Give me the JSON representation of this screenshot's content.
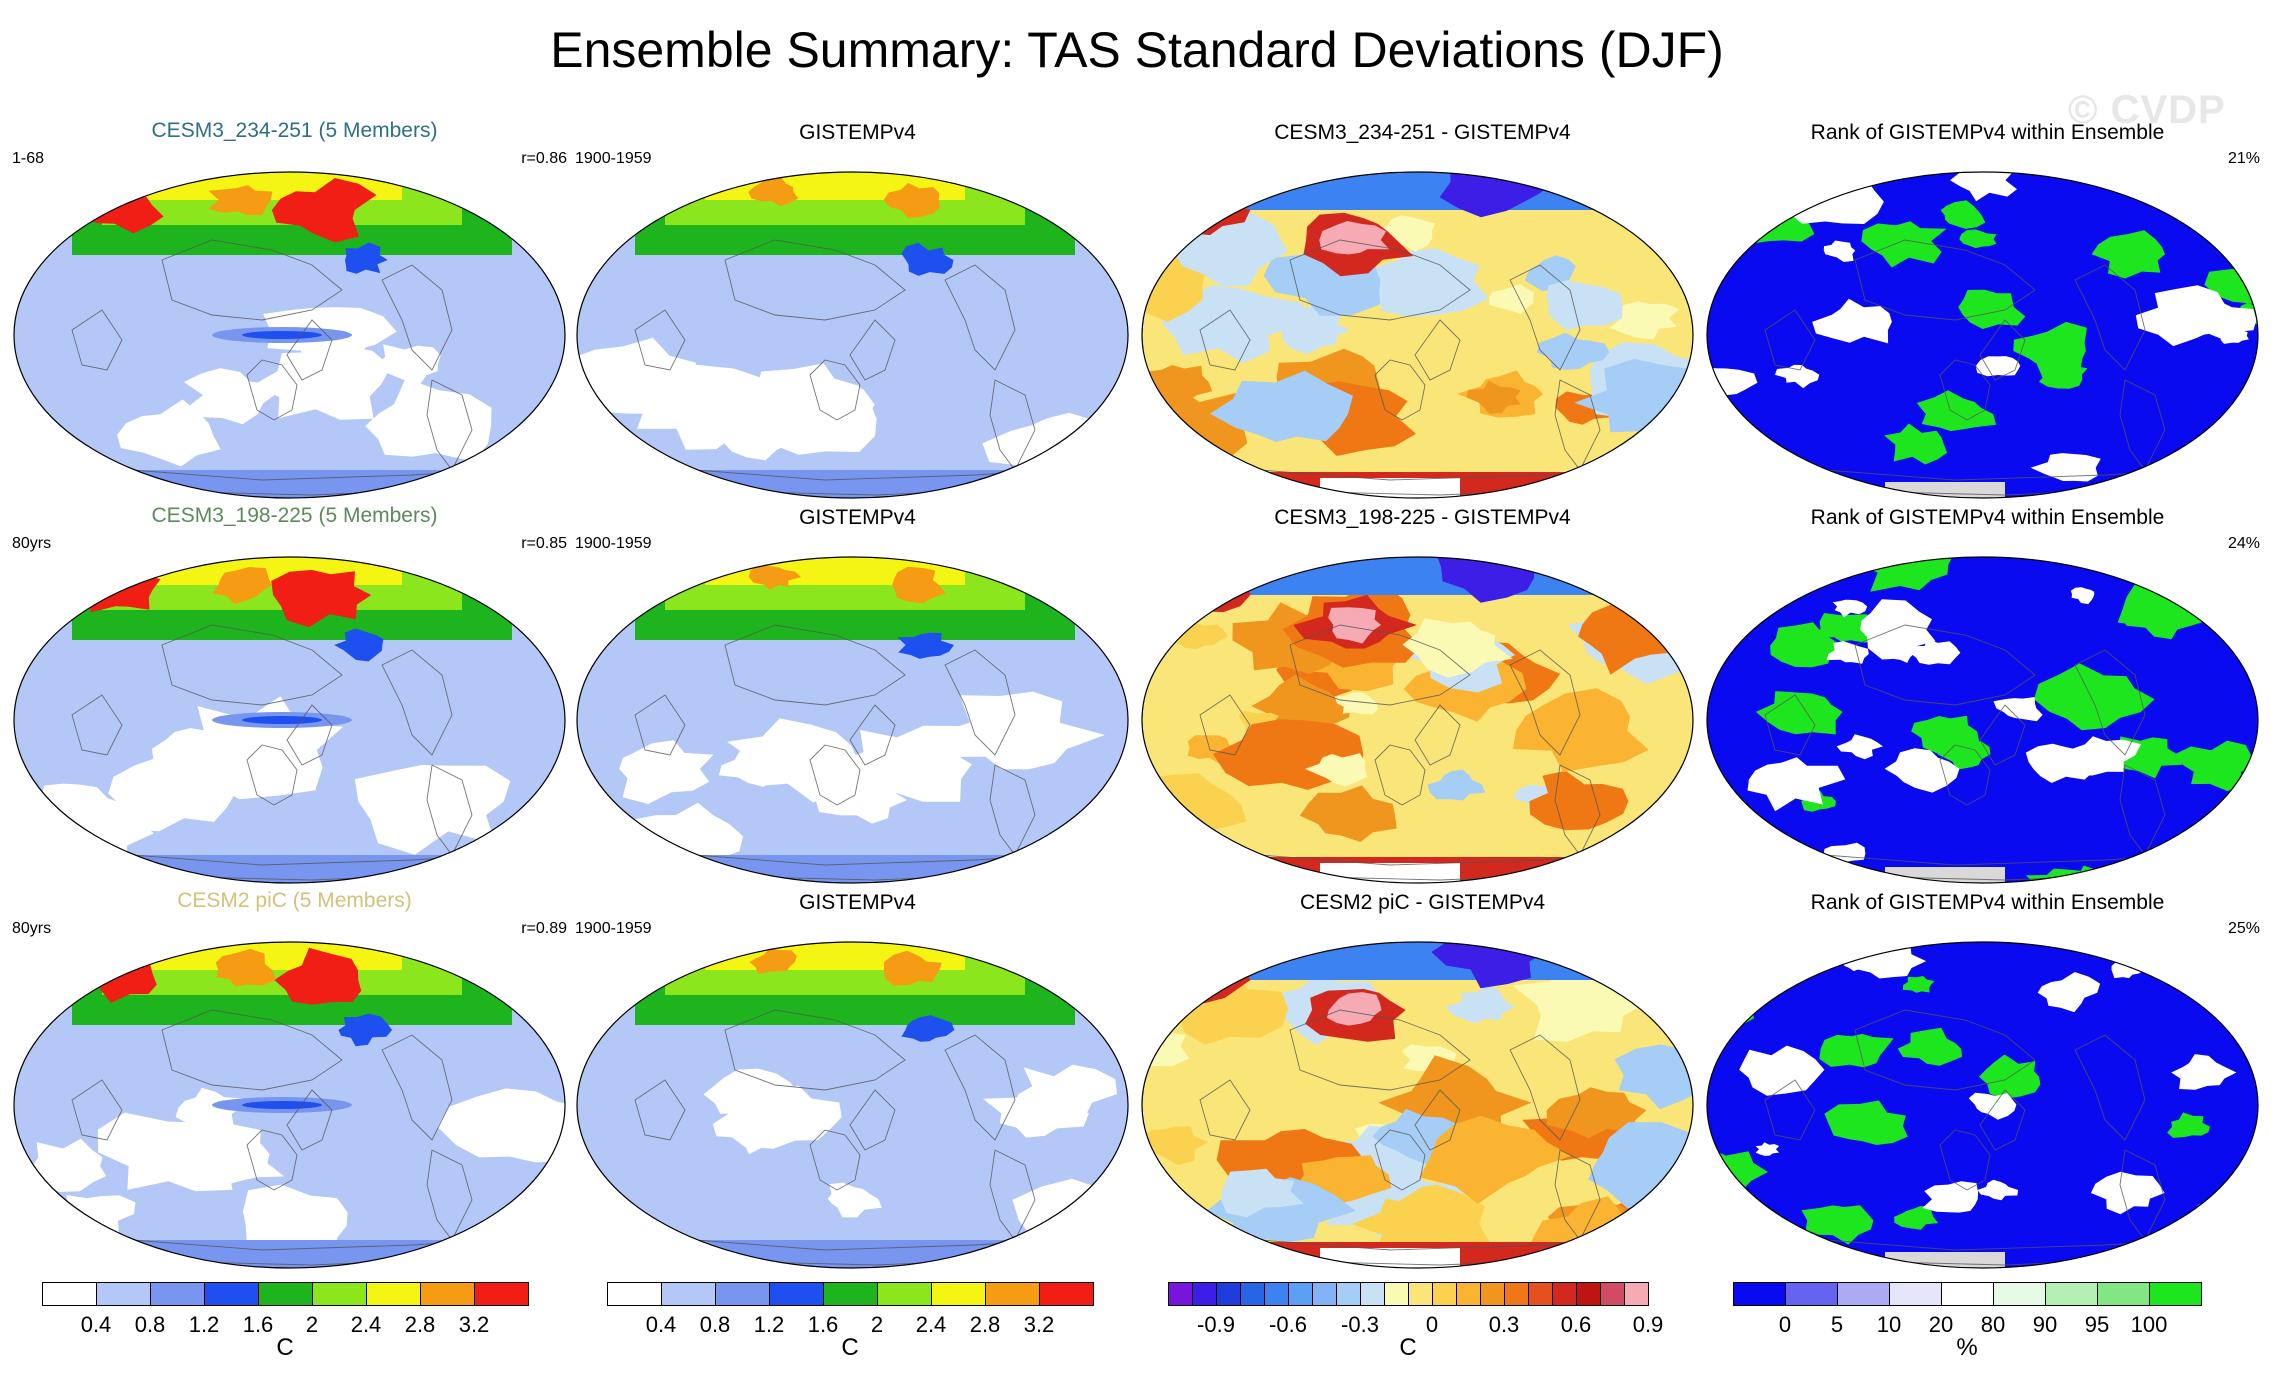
{
  "title": "Ensemble Summary: TAS Standard Deviations (DJF)",
  "watermark": "© CVDP",
  "rows": [
    {
      "model": {
        "title": "CESM3_234-251 (5 Members)",
        "title_color": "#2f6f86",
        "left": "1-68",
        "right": "r=0.86"
      },
      "obs": {
        "title": "GISTEMPv4",
        "left": "1900-1959"
      },
      "diff": {
        "title": "CESM3_234-251 - GISTEMPv4"
      },
      "rank": {
        "title": "Rank of GISTEMPv4 within Ensemble",
        "right": "21%"
      }
    },
    {
      "model": {
        "title": "CESM3_198-225 (5 Members)",
        "title_color": "#5c8a5c",
        "left": "80yrs",
        "right": "r=0.85"
      },
      "obs": {
        "title": "GISTEMPv4",
        "left": "1900-1959"
      },
      "diff": {
        "title": "CESM3_198-225 - GISTEMPv4"
      },
      "rank": {
        "title": "Rank of GISTEMPv4 within Ensemble",
        "right": "24%"
      }
    },
    {
      "model": {
        "title": "CESM2 piC (5 Members)",
        "title_color": "#d2c27a",
        "left": "80yrs",
        "right": "r=0.89"
      },
      "obs": {
        "title": "GISTEMPv4",
        "left": "1900-1959"
      },
      "diff": {
        "title": "CESM2 piC - GISTEMPv4"
      },
      "rank": {
        "title": "Rank of GISTEMPv4 within Ensemble",
        "right": "25%"
      }
    }
  ],
  "colorbars": {
    "sd": {
      "unit": "C",
      "labels": [
        "0.4",
        "0.8",
        "1.2",
        "1.6",
        "2",
        "2.4",
        "2.8",
        "3.2"
      ],
      "colors": [
        "#ffffff",
        "#b4c8f8",
        "#7896f0",
        "#1e50f0",
        "#1eb41e",
        "#8ce61e",
        "#f5f514",
        "#f59b14",
        "#f01e14"
      ]
    },
    "diff": {
      "unit": "C",
      "labels": [
        "-0.9",
        "-0.6",
        "-0.3",
        "0",
        "0.3",
        "0.6",
        "0.9"
      ],
      "colors": [
        "#7814dc",
        "#3c1ee6",
        "#1e3cdc",
        "#2864e6",
        "#3c82f0",
        "#5aa0f5",
        "#82b4f5",
        "#a5cdf5",
        "#c8e1f5",
        "#fafab4",
        "#fae678",
        "#fad250",
        "#fab432",
        "#f0961e",
        "#f07814",
        "#e6501e",
        "#d2281e",
        "#be1414",
        "#d24b64",
        "#f5aab4"
      ]
    },
    "rank": {
      "unit": "%",
      "labels": [
        "0",
        "5",
        "10",
        "20",
        "80",
        "90",
        "95",
        "100"
      ],
      "colors": [
        "#0a0af0",
        "#6464f0",
        "#aaaaf5",
        "#e6e6fa",
        "#ffffff",
        "#e6fae6",
        "#b4f0b4",
        "#82e682",
        "#1ee61e"
      ]
    }
  }
}
